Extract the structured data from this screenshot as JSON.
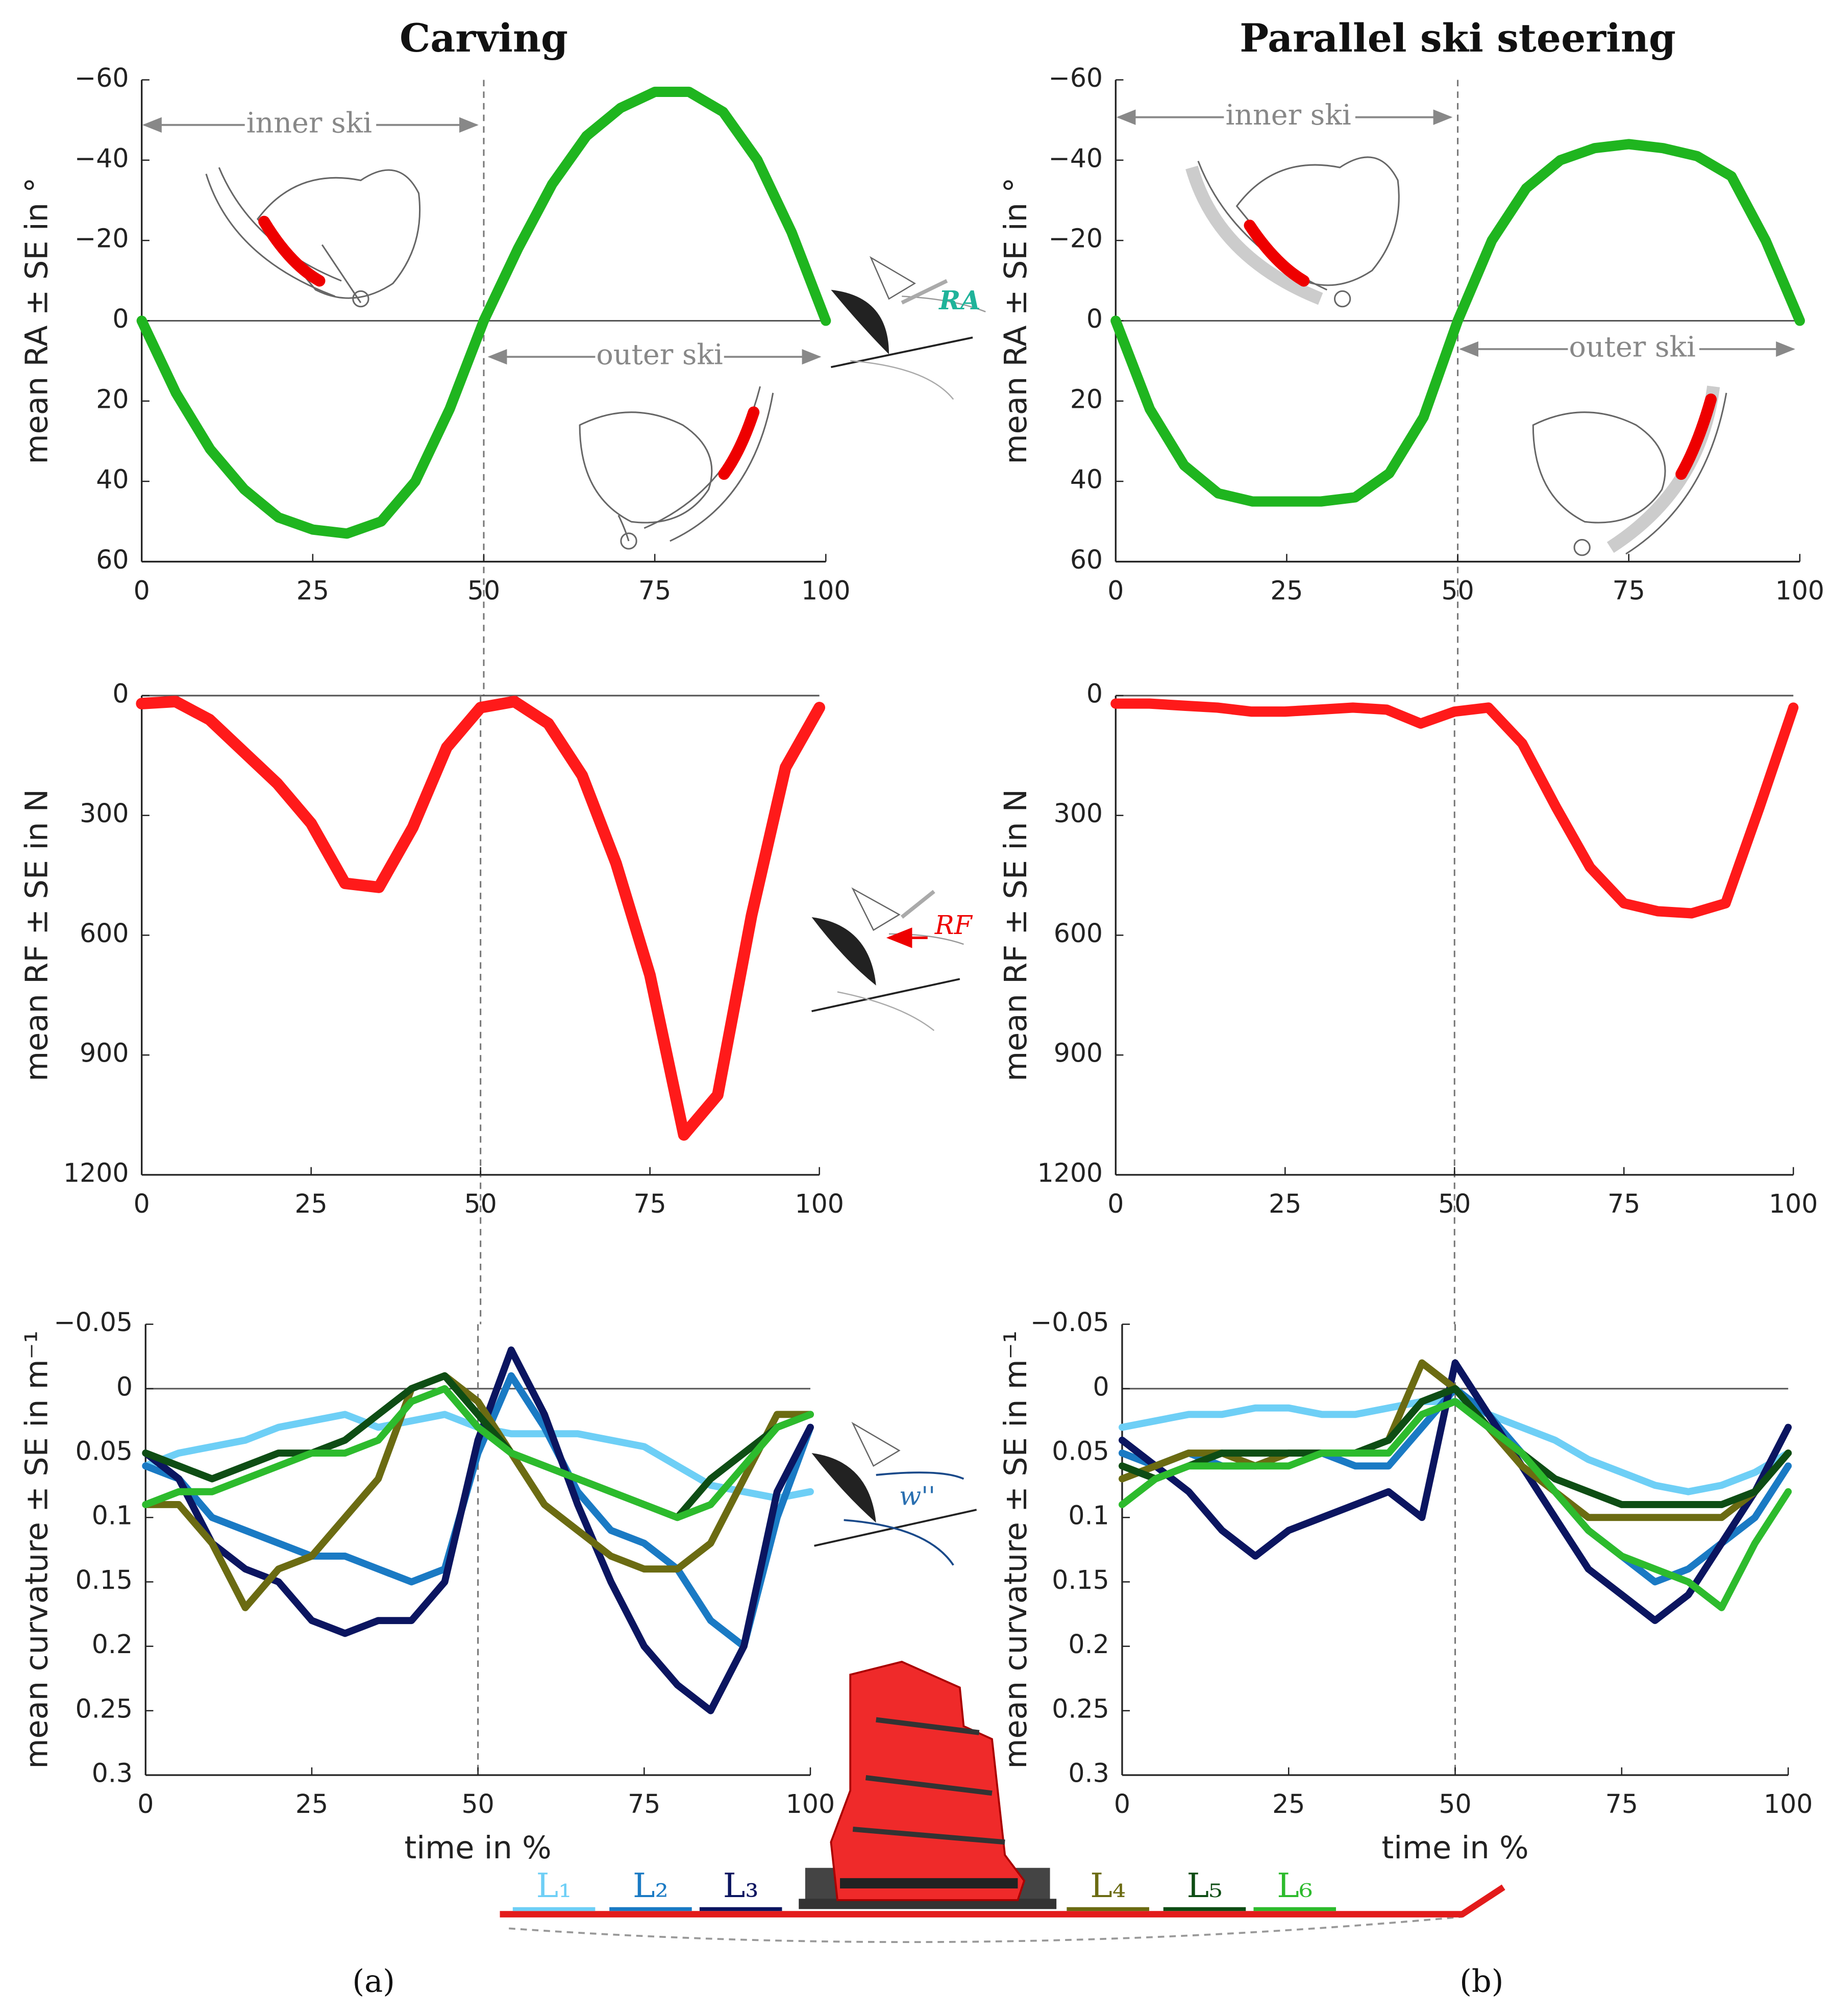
{
  "chart_data": [
    {
      "type": "line",
      "title": "Carving",
      "y_label": "mean RA ± SE in °",
      "x": [
        0,
        5,
        10,
        15,
        20,
        25,
        30,
        35,
        40,
        45,
        50,
        55,
        60,
        65,
        70,
        75,
        80,
        85,
        90,
        95,
        100
      ],
      "series": [
        {
          "color": "#1fb51f",
          "values": [
            0,
            18,
            32,
            42,
            49,
            52,
            53,
            50,
            40,
            22,
            0,
            -18,
            -34,
            -46,
            -53,
            -57,
            -57,
            -52,
            -40,
            -22,
            0
          ]
        }
      ],
      "xlim": [
        0,
        100
      ],
      "xticks": [
        0,
        25,
        50,
        75,
        100
      ],
      "ylim": [
        -60,
        60
      ],
      "y_direction": "reverse",
      "yticks": [
        {
          "value": -60,
          "label": "−60"
        },
        {
          "value": -40,
          "label": "−40"
        },
        {
          "value": -20,
          "label": "−20"
        },
        0,
        20,
        40,
        60
      ],
      "hline": 0,
      "vline": 50,
      "annotations": [
        "inner ski",
        "outer ski",
        "RA"
      ]
    },
    {
      "type": "line",
      "title": "Parallel ski steering",
      "y_label": "mean RA ± SE in °",
      "x": [
        0,
        5,
        10,
        15,
        20,
        25,
        30,
        35,
        40,
        45,
        50,
        55,
        60,
        65,
        70,
        75,
        80,
        85,
        90,
        95,
        100
      ],
      "series": [
        {
          "color": "#1fb51f",
          "values": [
            0,
            22,
            36,
            43,
            45,
            45,
            45,
            44,
            38,
            24,
            0,
            -20,
            -33,
            -40,
            -43,
            -44,
            -43,
            -41,
            -36,
            -20,
            0
          ]
        }
      ],
      "xlim": [
        0,
        100
      ],
      "xticks": [
        0,
        25,
        50,
        75,
        100
      ],
      "ylim": [
        -60,
        60
      ],
      "y_direction": "reverse",
      "yticks": [
        {
          "value": -60,
          "label": "−60"
        },
        {
          "value": -40,
          "label": "−40"
        },
        {
          "value": -20,
          "label": "−20"
        },
        0,
        20,
        40,
        60
      ],
      "hline": 0,
      "vline": 50,
      "annotations": [
        "inner ski",
        "outer ski"
      ]
    },
    {
      "type": "line",
      "y_label": "mean RF ± SE in N",
      "x": [
        0,
        5,
        10,
        15,
        20,
        25,
        30,
        35,
        40,
        45,
        50,
        55,
        60,
        65,
        70,
        75,
        80,
        85,
        90,
        95,
        100
      ],
      "series": [
        {
          "color": "#ff1a1a",
          "values": [
            20,
            15,
            60,
            140,
            220,
            320,
            470,
            480,
            330,
            130,
            30,
            15,
            70,
            200,
            420,
            700,
            1100,
            1000,
            550,
            180,
            30
          ]
        }
      ],
      "xlim": [
        0,
        100
      ],
      "xticks": [
        0,
        25,
        50,
        75,
        100
      ],
      "ylim": [
        0,
        1200
      ],
      "y_direction": "reverse",
      "yticks": [
        0,
        300,
        600,
        900,
        1200
      ],
      "hline": 0,
      "vline": 50,
      "annotations": [
        "RF"
      ]
    },
    {
      "type": "line",
      "y_label": "mean RF ± SE in N",
      "x": [
        0,
        5,
        10,
        15,
        20,
        25,
        30,
        35,
        40,
        45,
        50,
        55,
        60,
        65,
        70,
        75,
        80,
        85,
        90,
        95,
        100
      ],
      "series": [
        {
          "color": "#ff1a1a",
          "values": [
            20,
            20,
            25,
            30,
            40,
            40,
            35,
            30,
            35,
            70,
            40,
            30,
            120,
            280,
            430,
            520,
            540,
            545,
            520,
            280,
            30
          ]
        }
      ],
      "xlim": [
        0,
        100
      ],
      "xticks": [
        0,
        25,
        50,
        75,
        100
      ],
      "ylim": [
        0,
        1200
      ],
      "y_direction": "reverse",
      "yticks": [
        0,
        300,
        600,
        900,
        1200
      ],
      "hline": 0,
      "vline": 50
    },
    {
      "type": "line",
      "y_label": "mean curvature ± SE in m⁻¹",
      "x_label": "time in %",
      "x": [
        0,
        5,
        10,
        15,
        20,
        25,
        30,
        35,
        40,
        45,
        50,
        55,
        60,
        65,
        70,
        75,
        80,
        85,
        90,
        95,
        100
      ],
      "series": [
        {
          "name": "L₁",
          "color": "#6ecff6",
          "values": [
            0.06,
            0.05,
            0.045,
            0.04,
            0.03,
            0.025,
            0.02,
            0.03,
            0.025,
            0.02,
            0.03,
            0.035,
            0.035,
            0.035,
            0.04,
            0.045,
            0.06,
            0.075,
            0.08,
            0.085,
            0.08
          ]
        },
        {
          "name": "L₂",
          "color": "#1a7ac4",
          "values": [
            0.06,
            0.07,
            0.1,
            0.11,
            0.12,
            0.13,
            0.13,
            0.14,
            0.15,
            0.14,
            0.05,
            -0.01,
            0.03,
            0.08,
            0.11,
            0.12,
            0.14,
            0.18,
            0.2,
            0.1,
            0.03
          ]
        },
        {
          "name": "L₃",
          "color": "#0b1560",
          "values": [
            0.05,
            0.07,
            0.12,
            0.14,
            0.15,
            0.18,
            0.19,
            0.18,
            0.18,
            0.15,
            0.04,
            -0.03,
            0.02,
            0.09,
            0.15,
            0.2,
            0.23,
            0.25,
            0.2,
            0.08,
            0.03
          ]
        },
        {
          "name": "L₄",
          "color": "#6b6b12",
          "values": [
            0.09,
            0.09,
            0.12,
            0.17,
            0.14,
            0.13,
            0.1,
            0.07,
            0,
            -0.01,
            0.01,
            0.05,
            0.09,
            0.11,
            0.13,
            0.14,
            0.14,
            0.12,
            0.07,
            0.02,
            0.02
          ]
        },
        {
          "name": "L₅",
          "color": "#0e4d14",
          "values": [
            0.05,
            0.06,
            0.07,
            0.06,
            0.05,
            0.05,
            0.04,
            0.02,
            0,
            -0.01,
            0.02,
            0.05,
            0.06,
            0.07,
            0.08,
            0.09,
            0.1,
            0.07,
            0.05,
            0.03,
            0.02
          ]
        },
        {
          "name": "L₆",
          "color": "#2dbb2d",
          "values": [
            0.09,
            0.08,
            0.08,
            0.07,
            0.06,
            0.05,
            0.05,
            0.04,
            0.01,
            0,
            0.03,
            0.05,
            0.06,
            0.07,
            0.08,
            0.09,
            0.1,
            0.09,
            0.06,
            0.03,
            0.02
          ]
        }
      ],
      "xlim": [
        0,
        100
      ],
      "xticks": [
        0,
        25,
        50,
        75,
        100
      ],
      "ylim": [
        -0.05,
        0.3
      ],
      "y_direction": "reverse",
      "yticks": [
        {
          "value": -0.05,
          "label": "−0.05"
        },
        0,
        0.05,
        0.1,
        0.15,
        0.2,
        0.25,
        0.3
      ],
      "hline": 0,
      "vline": 50,
      "annotations": [
        "w''",
        "(a)"
      ]
    },
    {
      "type": "line",
      "y_label": "mean curvature ± SE in m⁻¹",
      "x_label": "time in %",
      "x": [
        0,
        5,
        10,
        15,
        20,
        25,
        30,
        35,
        40,
        45,
        50,
        55,
        60,
        65,
        70,
        75,
        80,
        85,
        90,
        95,
        100
      ],
      "series": [
        {
          "color": "#6ecff6",
          "values": [
            0.03,
            0.025,
            0.02,
            0.02,
            0.015,
            0.015,
            0.02,
            0.02,
            0.015,
            0.01,
            0.01,
            0.02,
            0.03,
            0.04,
            0.055,
            0.065,
            0.075,
            0.08,
            0.075,
            0.065,
            0.05
          ]
        },
        {
          "color": "#1a7ac4",
          "values": [
            0.05,
            0.06,
            0.05,
            0.06,
            0.06,
            0.05,
            0.05,
            0.06,
            0.06,
            0.03,
            0,
            0.02,
            0.05,
            0.08,
            0.11,
            0.13,
            0.15,
            0.14,
            0.12,
            0.1,
            0.06
          ]
        },
        {
          "color": "#0b1560",
          "values": [
            0.04,
            0.06,
            0.08,
            0.11,
            0.13,
            0.11,
            0.1,
            0.09,
            0.08,
            0.1,
            -0.02,
            0.02,
            0.06,
            0.1,
            0.14,
            0.16,
            0.18,
            0.16,
            0.12,
            0.08,
            0.03
          ]
        },
        {
          "color": "#6b6b12",
          "values": [
            0.07,
            0.06,
            0.05,
            0.05,
            0.06,
            0.05,
            0.05,
            0.05,
            0.04,
            -0.02,
            0,
            0.03,
            0.06,
            0.08,
            0.1,
            0.1,
            0.1,
            0.1,
            0.1,
            0.08,
            0.05
          ]
        },
        {
          "color": "#0e4d14",
          "values": [
            0.06,
            0.07,
            0.06,
            0.05,
            0.05,
            0.05,
            0.05,
            0.05,
            0.04,
            0.01,
            0,
            0.03,
            0.05,
            0.07,
            0.08,
            0.09,
            0.09,
            0.09,
            0.09,
            0.08,
            0.05
          ]
        },
        {
          "color": "#2dbb2d",
          "values": [
            0.09,
            0.07,
            0.06,
            0.06,
            0.06,
            0.06,
            0.05,
            0.05,
            0.05,
            0.02,
            0.01,
            0.03,
            0.05,
            0.08,
            0.11,
            0.13,
            0.14,
            0.15,
            0.17,
            0.12,
            0.08
          ]
        }
      ],
      "xlim": [
        0,
        100
      ],
      "xticks": [
        0,
        25,
        50,
        75,
        100
      ],
      "ylim": [
        -0.05,
        0.3
      ],
      "y_direction": "reverse",
      "yticks": [
        {
          "value": -0.05,
          "label": "−0.05"
        },
        0,
        0.05,
        0.1,
        0.15,
        0.2,
        0.25,
        0.3
      ],
      "hline": 0,
      "vline": 50,
      "annotations": [
        "(b)"
      ]
    }
  ]
}
